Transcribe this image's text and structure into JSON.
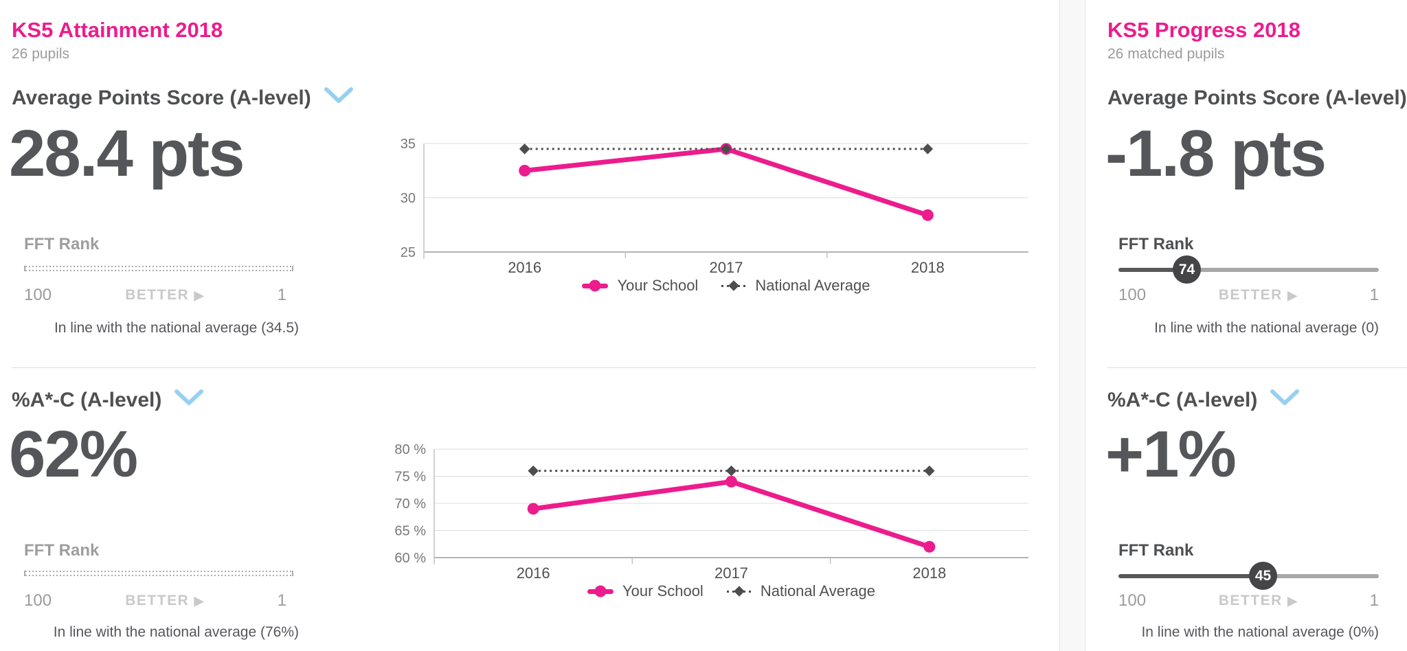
{
  "theme": {
    "accent_pink": "#ec1c8d",
    "heading_text": "#4f5052",
    "value_text": "#545659",
    "muted_text": "#9b9b9b",
    "faint_text": "#c9c9c9",
    "chevron_blue": "#96d0f1",
    "national_line": "#4d4d4d",
    "slider_dark": "#58585a",
    "slider_light": "#a8a8a8"
  },
  "left_panel": {
    "title": "KS5 Attainment 2018",
    "subtitle": "26 pupils",
    "cards": [
      {
        "metric_label": "Average Points Score (A-level)",
        "value": "28.4 pts",
        "fft_rank": {
          "label": "FFT Rank",
          "scale_left": "100",
          "scale_mid": "BETTER",
          "scale_arrow": "▶",
          "scale_right": "1",
          "rank": null
        },
        "note": "In line with the national average (34.5)"
      },
      {
        "metric_label": "%A*-C (A-level)",
        "value": "62%",
        "fft_rank": {
          "label": "FFT Rank",
          "scale_left": "100",
          "scale_mid": "BETTER",
          "scale_arrow": "▶",
          "scale_right": "1",
          "rank": null
        },
        "note": "In line with the national average (76%)"
      }
    ]
  },
  "right_panel": {
    "title": "KS5 Progress 2018",
    "subtitle": "26 matched pupils",
    "cards": [
      {
        "metric_label": "Average Points Score (A-level)",
        "value": "-1.8 pts",
        "fft_rank": {
          "label": "FFT Rank",
          "scale_left": "100",
          "scale_mid": "BETTER",
          "scale_arrow": "▶",
          "scale_right": "1",
          "rank": 74
        },
        "note": "In line with the national average (0)"
      },
      {
        "metric_label": "%A*-C (A-level)",
        "value": "+1%",
        "fft_rank": {
          "label": "FFT Rank",
          "scale_left": "100",
          "scale_mid": "BETTER",
          "scale_arrow": "▶",
          "scale_right": "1",
          "rank": 45
        },
        "note": "In line with the national average (0%)"
      }
    ]
  },
  "chart_data": [
    {
      "type": "line",
      "title": "",
      "categories": [
        "2016",
        "2017",
        "2018"
      ],
      "series": [
        {
          "name": "Your School",
          "values": [
            32.5,
            34.5,
            28.4
          ],
          "color": "#ec1c8d",
          "line_style": "solid"
        },
        {
          "name": "National Average",
          "values": [
            34.5,
            34.5,
            34.5
          ],
          "color": "#4d4d4d",
          "line_style": "dotted"
        }
      ],
      "ylim": [
        25,
        35
      ],
      "ytick_step": 5,
      "ylabel_suffix": "",
      "xlabel": "",
      "ylabel": "",
      "grid": true,
      "legend_position": "bottom"
    },
    {
      "type": "line",
      "title": "",
      "categories": [
        "2016",
        "2017",
        "2018"
      ],
      "series": [
        {
          "name": "Your School",
          "values": [
            69,
            74,
            62
          ],
          "color": "#ec1c8d",
          "line_style": "solid"
        },
        {
          "name": "National Average",
          "values": [
            76,
            76,
            76
          ],
          "color": "#4d4d4d",
          "line_style": "dotted"
        }
      ],
      "ylim": [
        60,
        80
      ],
      "ytick_step": 5,
      "ylabel_suffix": " %",
      "xlabel": "",
      "ylabel": "",
      "grid": true,
      "legend_position": "bottom"
    }
  ]
}
